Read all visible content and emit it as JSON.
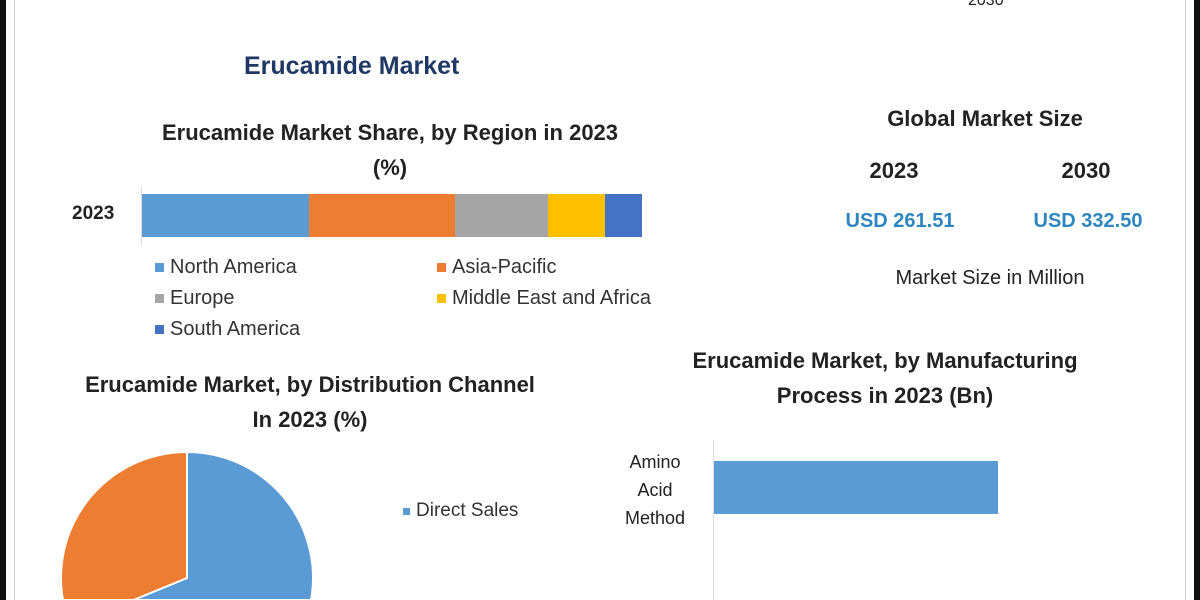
{
  "header": {
    "cut_year": "2030",
    "title": "Erucamide Market"
  },
  "global": {
    "title": "Global Market Size",
    "years": [
      "2023",
      "2030"
    ],
    "values": [
      "USD 261.51",
      "USD 332.50"
    ],
    "unit_note": "Market Size in Million",
    "value_color": "#2e86c1"
  },
  "chart_data": [
    {
      "type": "bar",
      "orientation": "horizontal",
      "stacked": true,
      "title": "Erucamide Market Share, by Region in 2023 (%)",
      "title_line1": "Erucamide Market Share, by Region in 2023",
      "title_line2": "(%)",
      "categories": [
        "2023"
      ],
      "series": [
        {
          "name": "North America",
          "values": [
            33.4
          ],
          "color": "#5b9bd5"
        },
        {
          "name": "Asia-Pacific",
          "values": [
            29.2
          ],
          "color": "#ed7d31"
        },
        {
          "name": "Europe",
          "values": [
            18.6
          ],
          "color": "#a5a5a5"
        },
        {
          "name": "Middle East and Africa",
          "values": [
            11.4
          ],
          "color": "#ffc000"
        },
        {
          "name": "South America",
          "values": [
            7.4
          ],
          "color": "#4472c4"
        }
      ],
      "legend": "bottom"
    },
    {
      "type": "pie",
      "title": "Erucamide Market, by Distribution Channel In 2023 (%)",
      "title_line1": "Erucamide Market, by Distribution Channel",
      "title_line2": "In 2023 (%)",
      "slices": [
        {
          "name": "Direct Sales",
          "value": 57,
          "color": "#5b9bd5"
        },
        {
          "value": 43,
          "color": "#ed7d31"
        }
      ],
      "legend": "right"
    },
    {
      "type": "bar",
      "orientation": "horizontal",
      "title": "Erucamide Market, by Manufacturing Process in 2023 (Bn)",
      "title_line1": "Erucamide Market, by Manufacturing",
      "title_line2": "Process in 2023 (Bn)",
      "categories": [
        "Amino Acid Method"
      ],
      "category_lines": [
        "Amino",
        "Acid",
        "Method"
      ],
      "values": [
        1
      ],
      "color": "#5b9bd5"
    }
  ]
}
